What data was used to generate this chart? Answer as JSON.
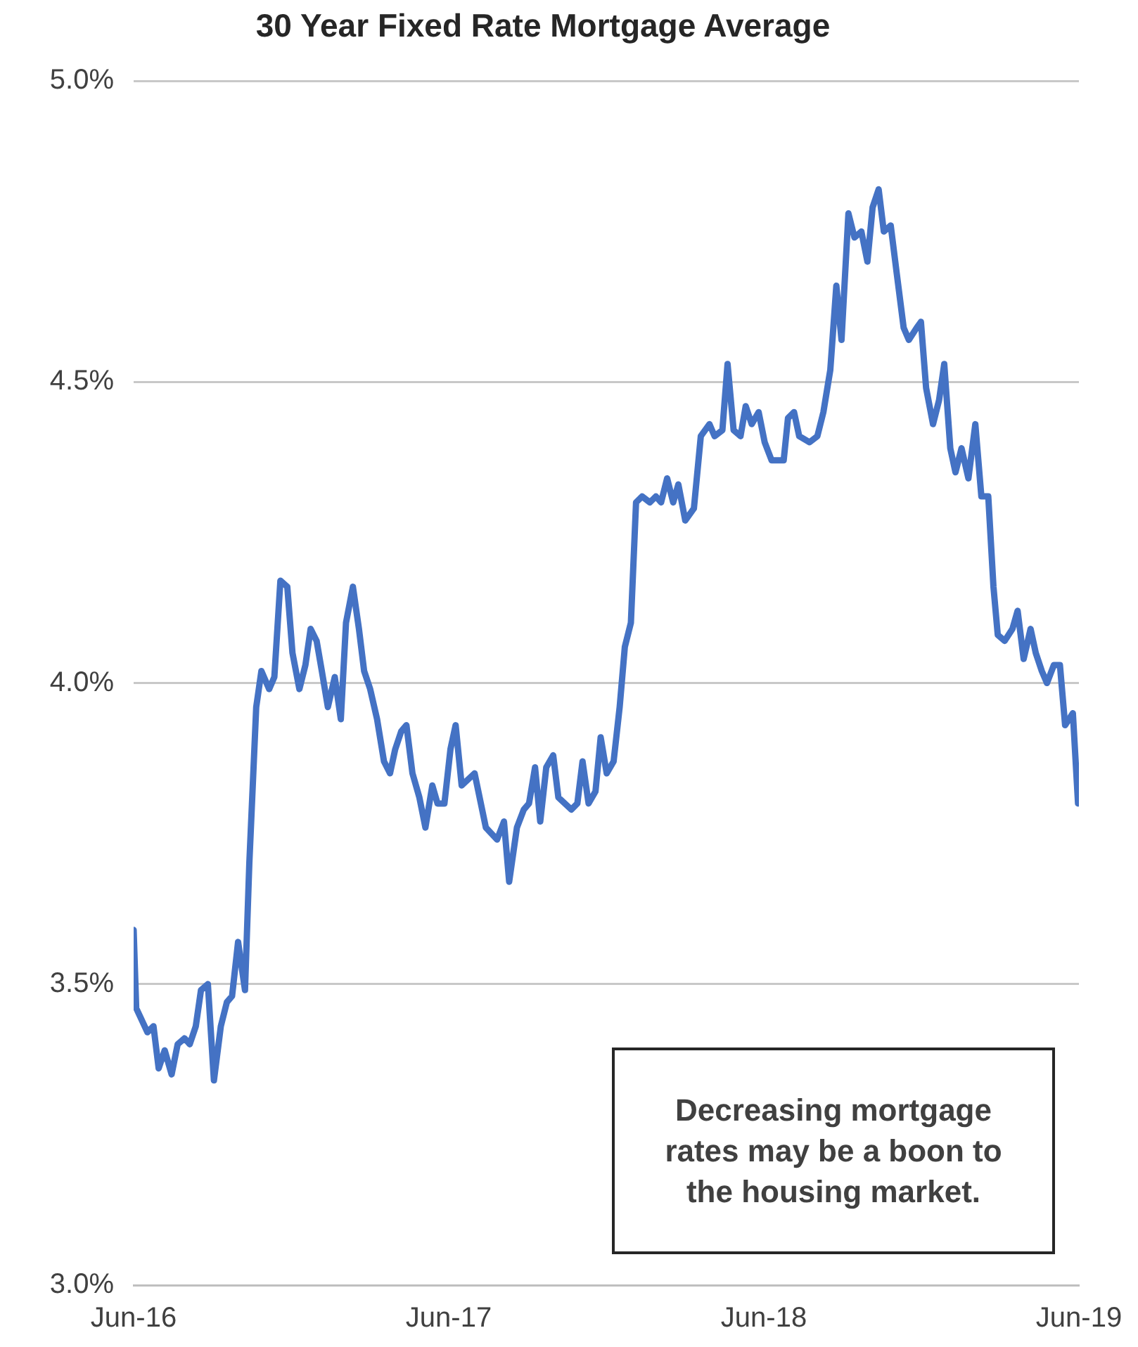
{
  "chart_data": {
    "type": "line",
    "title": "30 Year Fixed Rate Mortgage Average",
    "x": [
      "2016-06-01",
      "2016-06-04",
      "2016-06-17",
      "2016-06-24",
      "2016-06-30",
      "2016-07-07",
      "2016-07-15",
      "2016-07-22",
      "2016-07-30",
      "2016-08-05",
      "2016-08-12",
      "2016-08-18",
      "2016-08-26",
      "2016-09-02",
      "2016-09-10",
      "2016-09-17",
      "2016-09-23",
      "2016-09-30",
      "2016-10-08",
      "2016-10-13",
      "2016-10-21",
      "2016-10-27",
      "2016-11-05",
      "2016-11-11",
      "2016-11-18",
      "2016-11-26",
      "2016-12-02",
      "2016-12-10",
      "2016-12-17",
      "2016-12-23",
      "2016-12-30",
      "2017-01-05",
      "2017-01-12",
      "2017-01-20",
      "2017-01-27",
      "2017-02-02",
      "2017-02-10",
      "2017-02-17",
      "2017-02-23",
      "2017-03-02",
      "2017-03-10",
      "2017-03-18",
      "2017-03-25",
      "2017-03-31",
      "2017-04-07",
      "2017-04-13",
      "2017-04-20",
      "2017-04-28",
      "2017-05-05",
      "2017-05-13",
      "2017-05-19",
      "2017-05-27",
      "2017-06-03",
      "2017-06-09",
      "2017-06-16",
      "2017-07-01",
      "2017-07-14",
      "2017-07-27",
      "2017-08-04",
      "2017-08-10",
      "2017-08-19",
      "2017-08-27",
      "2017-09-02",
      "2017-09-09",
      "2017-09-15",
      "2017-09-22",
      "2017-09-30",
      "2017-10-06",
      "2017-10-21",
      "2017-10-28",
      "2017-11-03",
      "2017-11-10",
      "2017-11-18",
      "2017-11-24",
      "2017-12-01",
      "2017-12-09",
      "2017-12-16",
      "2017-12-22",
      "2017-12-29",
      "2018-01-04",
      "2018-01-11",
      "2018-01-20",
      "2018-01-27",
      "2018-02-02",
      "2018-02-09",
      "2018-02-16",
      "2018-02-22",
      "2018-03-02",
      "2018-03-12",
      "2018-03-20",
      "2018-03-30",
      "2018-04-05",
      "2018-04-14",
      "2018-04-20",
      "2018-04-27",
      "2018-05-05",
      "2018-05-11",
      "2018-05-18",
      "2018-05-26",
      "2018-06-02",
      "2018-06-10",
      "2018-06-24",
      "2018-06-29",
      "2018-07-06",
      "2018-07-12",
      "2018-07-24",
      "2018-08-02",
      "2018-08-09",
      "2018-08-17",
      "2018-08-24",
      "2018-08-30",
      "2018-09-07",
      "2018-09-14",
      "2018-09-22",
      "2018-09-29",
      "2018-10-05",
      "2018-10-12",
      "2018-10-18",
      "2018-10-26",
      "2018-11-02",
      "2018-11-10",
      "2018-11-16",
      "2018-11-25",
      "2018-11-30",
      "2018-12-06",
      "2018-12-14",
      "2018-12-21",
      "2018-12-27",
      "2019-01-03",
      "2019-01-09",
      "2019-01-16",
      "2019-01-24",
      "2019-02-01",
      "2019-02-08",
      "2019-02-16",
      "2019-02-22",
      "2019-02-27",
      "2019-03-07",
      "2019-03-16",
      "2019-03-22",
      "2019-03-29",
      "2019-04-06",
      "2019-04-12",
      "2019-04-19",
      "2019-04-25",
      "2019-05-03",
      "2019-05-10",
      "2019-05-16",
      "2019-05-25",
      "2019-05-31"
    ],
    "series": [
      {
        "color": "#4472c4",
        "values": [
          3.59,
          3.46,
          3.42,
          3.43,
          3.36,
          3.39,
          3.35,
          3.4,
          3.41,
          3.4,
          3.43,
          3.49,
          3.5,
          3.34,
          3.43,
          3.47,
          3.48,
          3.57,
          3.49,
          3.7,
          3.96,
          4.02,
          3.99,
          4.01,
          4.17,
          4.16,
          4.05,
          3.99,
          4.03,
          4.09,
          4.07,
          4.02,
          3.96,
          4.01,
          3.94,
          4.1,
          4.16,
          4.09,
          4.02,
          3.99,
          3.94,
          3.87,
          3.85,
          3.89,
          3.92,
          3.93,
          3.85,
          3.81,
          3.76,
          3.83,
          3.8,
          3.8,
          3.89,
          3.93,
          3.83,
          3.85,
          3.76,
          3.74,
          3.77,
          3.67,
          3.76,
          3.79,
          3.8,
          3.86,
          3.77,
          3.86,
          3.88,
          3.81,
          3.79,
          3.8,
          3.87,
          3.8,
          3.82,
          3.91,
          3.85,
          3.87,
          3.96,
          4.06,
          4.1,
          4.3,
          4.31,
          4.3,
          4.31,
          4.3,
          4.34,
          4.3,
          4.33,
          4.27,
          4.29,
          4.41,
          4.43,
          4.41,
          4.42,
          4.53,
          4.42,
          4.41,
          4.46,
          4.43,
          4.45,
          4.4,
          4.37,
          4.37,
          4.44,
          4.45,
          4.41,
          4.4,
          4.41,
          4.45,
          4.52,
          4.66,
          4.57,
          4.78,
          4.74,
          4.75,
          4.7,
          4.79,
          4.82,
          4.75,
          4.76,
          4.68,
          4.59,
          4.57,
          4.59,
          4.6,
          4.49,
          4.43,
          4.47,
          4.53,
          4.39,
          4.35,
          4.39,
          4.34,
          4.43,
          4.31,
          4.31,
          4.16,
          4.08,
          4.07,
          4.09,
          4.12,
          4.04,
          4.09,
          4.05,
          4.02,
          4.0,
          4.03,
          4.03,
          3.93,
          3.95,
          3.8
        ]
      }
    ],
    "xlim": [
      "2016-06-01",
      "2019-06-01"
    ],
    "xticks": [
      {
        "value": "2016-06-01",
        "label": "Jun-16"
      },
      {
        "value": "2017-06-01",
        "label": "Jun-17"
      },
      {
        "value": "2018-06-01",
        "label": "Jun-18"
      },
      {
        "value": "2019-06-01",
        "label": "Jun-19"
      }
    ],
    "ylim": [
      3.0,
      5.0
    ],
    "yticks": [
      {
        "value": 3.0,
        "label": "3.0%"
      },
      {
        "value": 3.5,
        "label": "3.5%"
      },
      {
        "value": 4.0,
        "label": "4.0%"
      },
      {
        "value": 4.5,
        "label": "4.5%"
      },
      {
        "value": 5.0,
        "label": "5.0%"
      }
    ],
    "grid": "y",
    "marker": "none",
    "line_style": "solid",
    "annotations": [
      "Decreasing mortgage rates may be a boon to the housing market."
    ]
  }
}
